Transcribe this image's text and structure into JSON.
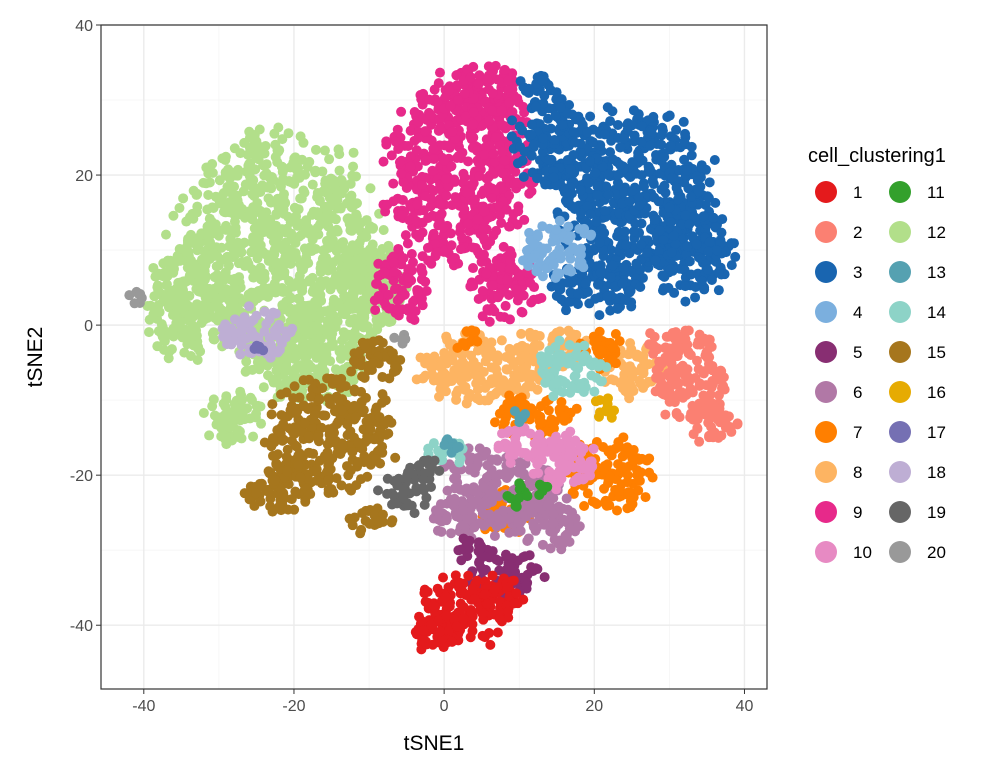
{
  "chart_data": {
    "type": "scatter",
    "xlabel": "tSNE1",
    "ylabel": "tSNE2",
    "xlim": [
      -45.7,
      43.0
    ],
    "ylim": [
      -48.5,
      40
    ],
    "xticks": [
      -40,
      -20,
      0,
      20,
      40
    ],
    "yticks": [
      -40,
      -20,
      0,
      20,
      40
    ],
    "xtick_labels": [
      "-40",
      "-20",
      "0",
      "20",
      "40"
    ],
    "ytick_labels": [
      "-40",
      "-20",
      "0",
      "20",
      "40"
    ],
    "grid": true,
    "legend": {
      "title": "cell_clustering1",
      "placement": "right",
      "columns": 2
    },
    "draw_order": [
      "12",
      "9",
      "3",
      "15",
      "8",
      "2",
      "4",
      "18",
      "7",
      "6",
      "14",
      "10",
      "19",
      "5",
      "1",
      "11",
      "16",
      "13",
      "17",
      "20"
    ],
    "clusters": [
      {
        "name": "1",
        "color": "#E41A1C",
        "regions": [
          [
            3,
            -38,
            6.5,
            5
          ],
          [
            8,
            -36,
            3,
            3
          ],
          [
            -1,
            -41,
            3,
            3
          ]
        ]
      },
      {
        "name": "2",
        "color": "#FB8072",
        "regions": [
          [
            33,
            -7,
            5,
            7
          ],
          [
            29,
            -3,
            2.5,
            3
          ],
          [
            36,
            -13,
            3,
            3
          ]
        ]
      },
      {
        "name": "3",
        "color": "#1965B0",
        "regions": [
          [
            25,
            17,
            11,
            12
          ],
          [
            33,
            10,
            6,
            7
          ],
          [
            14,
            25,
            5,
            7
          ],
          [
            20,
            5,
            6,
            4
          ],
          [
            12,
            32,
            2,
            2
          ]
        ]
      },
      {
        "name": "4",
        "color": "#7BAFDE",
        "regions": [
          [
            15,
            10,
            5,
            4
          ]
        ]
      },
      {
        "name": "5",
        "color": "#882E72",
        "regions": [
          [
            8,
            -33,
            5,
            3.5
          ],
          [
            4,
            -30,
            3,
            2
          ]
        ]
      },
      {
        "name": "6",
        "color": "#B178A6",
        "regions": [
          [
            7,
            -22,
            8,
            6
          ],
          [
            14,
            -26,
            5,
            4
          ],
          [
            2,
            -26,
            4,
            3
          ]
        ]
      },
      {
        "name": "7",
        "color": "#FF7F00",
        "regions": [
          [
            22,
            -20,
            6,
            5
          ],
          [
            12,
            -12,
            6,
            3
          ],
          [
            21,
            -3,
            3,
            3
          ],
          [
            8,
            -25,
            4,
            3
          ],
          [
            3,
            -2,
            2,
            1.5
          ]
        ]
      },
      {
        "name": "8",
        "color": "#FDB462",
        "regions": [
          [
            5,
            -6,
            9,
            5
          ],
          [
            25,
            -6,
            4,
            4
          ],
          [
            14,
            -3,
            5,
            3
          ]
        ]
      },
      {
        "name": "9",
        "color": "#E7298A",
        "regions": [
          [
            2,
            20,
            10,
            13
          ],
          [
            5,
            30,
            6,
            5
          ],
          [
            -6,
            5,
            4,
            5
          ],
          [
            8,
            5,
            5,
            5
          ]
        ]
      },
      {
        "name": "10",
        "color": "#E78AC3",
        "regions": [
          [
            16,
            -18,
            5,
            4
          ],
          [
            10,
            -16,
            3,
            3
          ]
        ]
      },
      {
        "name": "11",
        "color": "#33A02C",
        "regions": [
          [
            10,
            -23,
            1.5,
            2
          ],
          [
            13,
            -22,
            1,
            1
          ]
        ]
      },
      {
        "name": "12",
        "color": "#B2DF8A",
        "regions": [
          [
            -22,
            10,
            14,
            16
          ],
          [
            -34,
            3,
            6,
            8
          ],
          [
            -18,
            -5,
            8,
            6
          ],
          [
            -28,
            -12,
            4,
            4
          ],
          [
            -10,
            5,
            5,
            7
          ]
        ]
      },
      {
        "name": "13",
        "color": "#55A1B1",
        "regions": [
          [
            1,
            -16,
            1.5,
            1.5
          ],
          [
            10,
            -12,
            1,
            1
          ]
        ]
      },
      {
        "name": "14",
        "color": "#8DD3C7",
        "regions": [
          [
            17,
            -6,
            5,
            4
          ],
          [
            0,
            -17,
            3,
            2
          ]
        ]
      },
      {
        "name": "15",
        "color": "#A6761D",
        "regions": [
          [
            -15,
            -15,
            9,
            8
          ],
          [
            -22,
            -22,
            5,
            3
          ],
          [
            -9,
            -5,
            4,
            3
          ],
          [
            -10,
            -26,
            3,
            2
          ]
        ]
      },
      {
        "name": "16",
        "color": "#E6AB02",
        "regions": [
          [
            22,
            -11,
            2,
            1.5
          ]
        ]
      },
      {
        "name": "17",
        "color": "#7570B3",
        "regions": [
          [
            -25,
            -3,
            1,
            1
          ]
        ]
      },
      {
        "name": "18",
        "color": "#BEAED4",
        "regions": [
          [
            -25,
            -1,
            5,
            3.5
          ]
        ]
      },
      {
        "name": "19",
        "color": "#666666",
        "regions": [
          [
            -5,
            -22,
            4,
            3
          ],
          [
            -2,
            -19,
            2,
            2
          ]
        ]
      },
      {
        "name": "20",
        "color": "#999999",
        "regions": [
          [
            -41,
            4,
            1.2,
            1.5
          ],
          [
            -6,
            -2,
            1,
            1
          ]
        ]
      }
    ]
  }
}
